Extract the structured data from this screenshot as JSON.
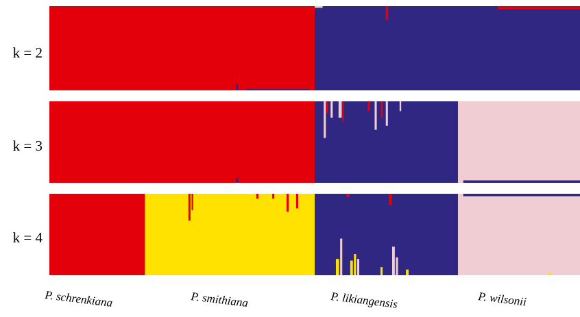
{
  "chart_data": {
    "type": "bar",
    "stacked": true,
    "populations": [
      "P. schrenkiana",
      "P. smithiana",
      "P. likiangensis",
      "P. wilsonii"
    ],
    "clusters": {
      "red": "#e3000b",
      "navy": "#2f2782",
      "yellow": "#ffe200",
      "pink": "#f0cdd2"
    },
    "panels": [
      {
        "label": "k = 2",
        "segments": [
          {
            "population": "P. schrenkiana",
            "cluster": "red",
            "fraction": 0.33
          },
          {
            "population": "P. smithiana",
            "cluster": "red",
            "fraction": 0.17
          },
          {
            "population": "P. likiangensis",
            "cluster": "navy",
            "fraction": 0.27
          },
          {
            "population": "P. wilsonii",
            "cluster": "navy",
            "fraction": 0.23
          }
        ]
      },
      {
        "label": "k = 3",
        "segments": [
          {
            "population": "P. schrenkiana",
            "cluster": "red",
            "fraction": 0.33
          },
          {
            "population": "P. smithiana",
            "cluster": "red",
            "fraction": 0.17
          },
          {
            "population": "P. likiangensis",
            "cluster": "navy",
            "fraction": 0.27
          },
          {
            "population": "P. wilsonii",
            "cluster": "pink",
            "fraction": 0.23
          }
        ]
      },
      {
        "label": "k = 4",
        "segments": [
          {
            "population": "P. schrenkiana",
            "cluster": "red",
            "fraction": 0.18
          },
          {
            "population": "P. smithiana",
            "cluster": "yellow",
            "fraction": 0.32
          },
          {
            "population": "P. likiangensis",
            "cluster": "navy",
            "fraction": 0.27
          },
          {
            "population": "P. wilsonii",
            "cluster": "pink",
            "fraction": 0.23
          }
        ]
      }
    ],
    "admixture": [
      {
        "panel": 0,
        "at": 0.634,
        "width": 0.0045,
        "from": "top",
        "depth": 0.16,
        "cluster": "red"
      },
      {
        "panel": 0,
        "at": 0.845,
        "width": 0.16,
        "from": "top",
        "depth": 0.04,
        "cluster": "red"
      },
      {
        "panel": 0,
        "at": 0.352,
        "width": 0.004,
        "from": "bottom",
        "depth": 0.07,
        "cluster": "navy"
      },
      {
        "panel": 0,
        "at": 0.37,
        "width": 0.12,
        "from": "bottom",
        "depth": 0.015,
        "cluster": "navy"
      },
      {
        "panel": 0,
        "at": 0.5,
        "width": 0.015,
        "from": "top",
        "depth": 0.02,
        "cluster": "pink"
      },
      {
        "panel": 1,
        "at": 0.517,
        "width": 0.004,
        "from": "top",
        "depth": 0.45,
        "cluster": "pink"
      },
      {
        "panel": 1,
        "at": 0.522,
        "width": 0.003,
        "from": "top",
        "depth": 0.15,
        "cluster": "red"
      },
      {
        "panel": 1,
        "at": 0.53,
        "width": 0.004,
        "from": "top",
        "depth": 0.2,
        "cluster": "pink"
      },
      {
        "panel": 1,
        "at": 0.545,
        "width": 0.006,
        "from": "top",
        "depth": 0.2,
        "cluster": "pink"
      },
      {
        "panel": 1,
        "at": 0.552,
        "width": 0.003,
        "from": "top",
        "depth": 0.25,
        "cluster": "red"
      },
      {
        "panel": 1,
        "at": 0.6,
        "width": 0.004,
        "from": "top",
        "depth": 0.12,
        "cluster": "red"
      },
      {
        "panel": 1,
        "at": 0.613,
        "width": 0.004,
        "from": "top",
        "depth": 0.35,
        "cluster": "pink"
      },
      {
        "panel": 1,
        "at": 0.625,
        "width": 0.003,
        "from": "top",
        "depth": 0.2,
        "cluster": "red"
      },
      {
        "panel": 1,
        "at": 0.634,
        "width": 0.004,
        "from": "top",
        "depth": 0.3,
        "cluster": "pink"
      },
      {
        "panel": 1,
        "at": 0.66,
        "width": 0.003,
        "from": "top",
        "depth": 0.12,
        "cluster": "pink"
      },
      {
        "panel": 1,
        "at": 0.78,
        "width": 0.22,
        "from": "bottom",
        "depth": 0.03,
        "cluster": "navy"
      },
      {
        "panel": 1,
        "at": 0.352,
        "width": 0.004,
        "from": "bottom",
        "depth": 0.06,
        "cluster": "navy"
      },
      {
        "panel": 2,
        "at": 0.262,
        "width": 0.004,
        "from": "top",
        "depth": 0.33,
        "cluster": "red"
      },
      {
        "panel": 2,
        "at": 0.268,
        "width": 0.003,
        "from": "top",
        "depth": 0.2,
        "cluster": "red"
      },
      {
        "panel": 2,
        "at": 0.39,
        "width": 0.004,
        "from": "top",
        "depth": 0.06,
        "cluster": "red"
      },
      {
        "panel": 2,
        "at": 0.42,
        "width": 0.004,
        "from": "top",
        "depth": 0.06,
        "cluster": "red"
      },
      {
        "panel": 2,
        "at": 0.447,
        "width": 0.004,
        "from": "top",
        "depth": 0.22,
        "cluster": "red"
      },
      {
        "panel": 2,
        "at": 0.465,
        "width": 0.004,
        "from": "top",
        "depth": 0.18,
        "cluster": "red"
      },
      {
        "panel": 2,
        "at": 0.56,
        "width": 0.006,
        "from": "top",
        "depth": 0.04,
        "cluster": "red"
      },
      {
        "panel": 2,
        "at": 0.64,
        "width": 0.005,
        "from": "top",
        "depth": 0.14,
        "cluster": "red"
      },
      {
        "panel": 2,
        "at": 0.54,
        "width": 0.006,
        "from": "bottom",
        "depth": 0.2,
        "cluster": "yellow"
      },
      {
        "panel": 2,
        "at": 0.548,
        "width": 0.004,
        "from": "bottom",
        "depth": 0.45,
        "cluster": "pink"
      },
      {
        "panel": 2,
        "at": 0.567,
        "width": 0.005,
        "from": "bottom",
        "depth": 0.18,
        "cluster": "yellow"
      },
      {
        "panel": 2,
        "at": 0.574,
        "width": 0.004,
        "from": "bottom",
        "depth": 0.26,
        "cluster": "yellow"
      },
      {
        "panel": 2,
        "at": 0.58,
        "width": 0.004,
        "from": "bottom",
        "depth": 0.2,
        "cluster": "pink"
      },
      {
        "panel": 2,
        "at": 0.624,
        "width": 0.004,
        "from": "bottom",
        "depth": 0.1,
        "cluster": "yellow"
      },
      {
        "panel": 2,
        "at": 0.646,
        "width": 0.005,
        "from": "bottom",
        "depth": 0.35,
        "cluster": "pink"
      },
      {
        "panel": 2,
        "at": 0.653,
        "width": 0.004,
        "from": "bottom",
        "depth": 0.22,
        "cluster": "pink"
      },
      {
        "panel": 2,
        "at": 0.672,
        "width": 0.005,
        "from": "bottom",
        "depth": 0.07,
        "cluster": "yellow"
      },
      {
        "panel": 2,
        "at": 0.78,
        "width": 0.22,
        "from": "top",
        "depth": 0.03,
        "cluster": "navy"
      },
      {
        "panel": 2,
        "at": 0.94,
        "width": 0.006,
        "from": "bottom",
        "depth": 0.03,
        "cluster": "yellow"
      }
    ]
  }
}
